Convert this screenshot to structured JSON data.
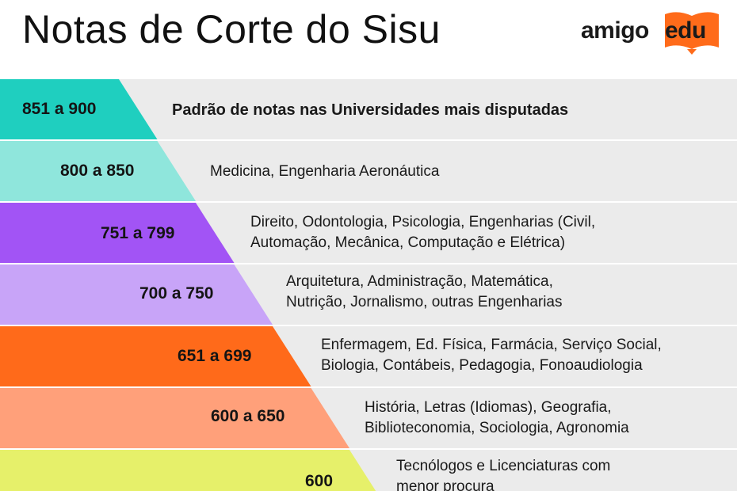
{
  "title": "Notas de Corte do Sisu",
  "brand": {
    "part1": "amigo",
    "part2": "edu",
    "accent": "#ff6b1a"
  },
  "rows": [
    {
      "range": "851 a 900",
      "color": "#1fcfbf",
      "lines": [
        "Padrão de notas nas Universidades mais disputadas"
      ]
    },
    {
      "range": "800 a 850",
      "color": "#8fe6dc",
      "lines": [
        "Medicina, Engenharia Aeronáutica"
      ]
    },
    {
      "range": "751 a 799",
      "color": "#a254f5",
      "lines": [
        "Direito, Odontologia, Psicologia, Engenharias (Civil,",
        "Automação, Mecânica, Computação e Elétrica)"
      ]
    },
    {
      "range": "700 a 750",
      "color": "#c8a4f8",
      "lines": [
        "Arquitetura, Administração, Matemática,",
        "Nutrição, Jornalismo, outras Engenharias"
      ]
    },
    {
      "range": "651 a 699",
      "color": "#ff6a1a",
      "lines": [
        "Enfermagem, Ed. Física, Farmácia, Serviço Social,",
        "Biologia, Contábeis, Pedagogia, Fonoaudiologia"
      ]
    },
    {
      "range": "600 a 650",
      "color": "#ffa07a",
      "lines": [
        "História, Letras (Idiomas), Geografia,",
        "Biblioteconomia, Sociologia, Agronomia"
      ]
    },
    {
      "range": "600",
      "color": "#e6f06a",
      "lines": [
        "Tecnólogos e Licenciaturas com",
        "menor procura"
      ]
    }
  ]
}
